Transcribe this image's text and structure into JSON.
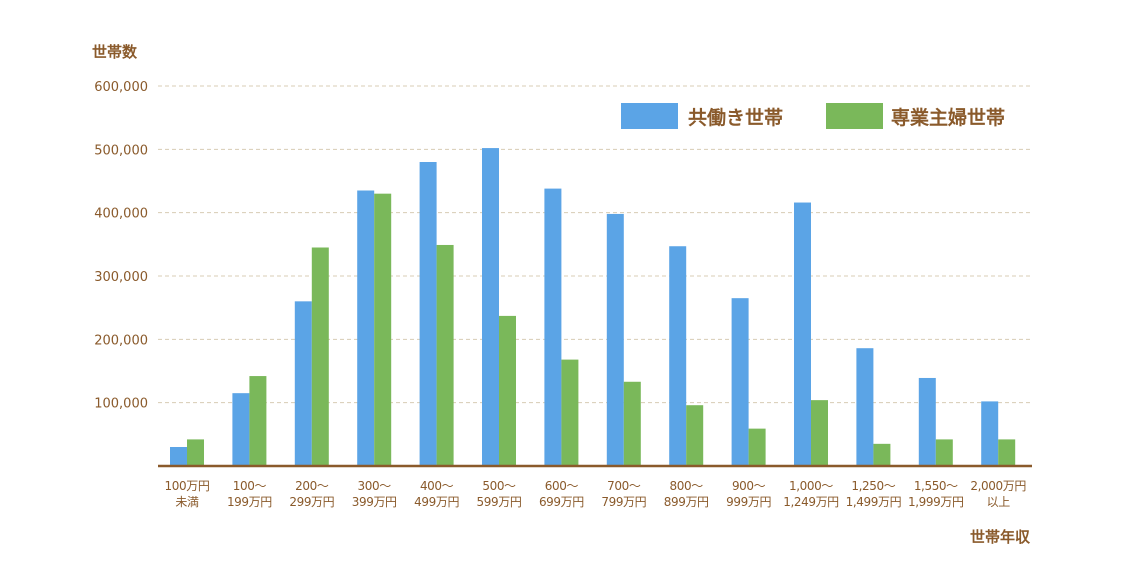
{
  "chart_data": {
    "type": "bar",
    "ylabel": "世帯数",
    "xlabel": "世帯年収",
    "ylim": [
      0,
      600000
    ],
    "yticks": [
      100000,
      200000,
      300000,
      400000,
      500000,
      600000
    ],
    "ytick_labels": [
      "100,000",
      "200,000",
      "300,000",
      "400,000",
      "500,000",
      "600,000"
    ],
    "grid": true,
    "legend_position": "top-right",
    "categories": [
      [
        "100万円",
        "未満"
      ],
      [
        "100～",
        "199万円"
      ],
      [
        "200～",
        "299万円"
      ],
      [
        "300～",
        "399万円"
      ],
      [
        "400～",
        "499万円"
      ],
      [
        "500～",
        "599万円"
      ],
      [
        "600～",
        "699万円"
      ],
      [
        "700～",
        "799万円"
      ],
      [
        "800～",
        "899万円"
      ],
      [
        "900～",
        "999万円"
      ],
      [
        "1,000～",
        "1,249万円"
      ],
      [
        "1,250～",
        "1,499万円"
      ],
      [
        "1,550～",
        "1,999万円"
      ],
      [
        "2,000万円",
        "以上"
      ]
    ],
    "series": [
      {
        "name": "共働き世帯",
        "color": "#5ba4e6",
        "values": [
          30000,
          115000,
          260000,
          435000,
          480000,
          502000,
          438000,
          398000,
          347000,
          265000,
          416000,
          186000,
          139000,
          102000
        ]
      },
      {
        "name": "専業主婦世帯",
        "color": "#7ab85a",
        "values": [
          42000,
          142000,
          345000,
          430000,
          349000,
          237000,
          168000,
          133000,
          96000,
          59000,
          104000,
          35000,
          42000,
          42000
        ]
      }
    ],
    "colors": {
      "text": "#8a5a2b",
      "axis": "#8a5a2b",
      "grid": "#d8ccb4"
    }
  }
}
